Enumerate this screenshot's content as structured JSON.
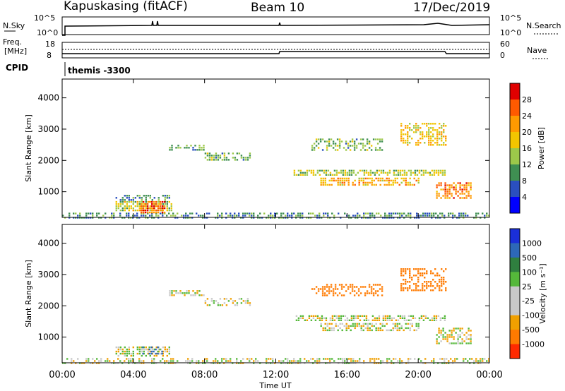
{
  "header": {
    "station": "Kapuskasing (fitACF)",
    "beam": "Beam 10",
    "date": "17/Dec/2019"
  },
  "top_panels": {
    "nsky_label": "N.Sky",
    "noise_left_ticks": [
      "10^5",
      "10^0"
    ],
    "noise_right_ticks": [
      "10^5",
      "10^0"
    ],
    "nsearch_label": "N.Search",
    "freq_label_1": "Freq.",
    "freq_label_2": "[MHz]",
    "freq_ticks": [
      "18",
      "8"
    ],
    "nave_ticks": [
      "60",
      "0"
    ],
    "nave_label": "Nave",
    "cpid_label": "CPID",
    "cpid_value": "themis -3300"
  },
  "colors": {
    "power_scale": [
      "#0000ff",
      "#2a4fbf",
      "#3f8f52",
      "#9cc84a",
      "#f2c500",
      "#ff9a00",
      "#ff5a00",
      "#e00000"
    ],
    "velocity_scale": [
      "#1a2fd8",
      "#2d68b8",
      "#2f7f3f",
      "#55b83a",
      "#c8c8c8",
      "#c8c8c8",
      "#f0a000",
      "#ff7a00",
      "#ff2a00"
    ]
  },
  "chart_data": [
    {
      "type": "heatmap",
      "id": "power",
      "ylabel": "Slant Range [km]",
      "colorbar_label": "Power [dB]",
      "colorbar_ticks": [
        "28",
        "24",
        "20",
        "16",
        "12",
        "8",
        "4"
      ],
      "ylim": [
        180,
        4600
      ],
      "y_ticks": [
        "4000",
        "3000",
        "2000",
        "1000"
      ],
      "patches": [
        {
          "t0": 0.0,
          "t1": 24.0,
          "r0": 190,
          "r1": 330,
          "p": 9,
          "d": 0.55
        },
        {
          "t0": 3.0,
          "t1": 6.2,
          "r0": 420,
          "r1": 700,
          "p": 16,
          "d": 0.7
        },
        {
          "t0": 4.4,
          "t1": 5.8,
          "r0": 300,
          "r1": 700,
          "p": 26,
          "d": 0.8
        },
        {
          "t0": 3.0,
          "t1": 6.0,
          "r0": 700,
          "r1": 900,
          "p": 9,
          "d": 0.6
        },
        {
          "t0": 6.0,
          "t1": 8.0,
          "r0": 2350,
          "r1": 2500,
          "p": 11,
          "d": 0.55
        },
        {
          "t0": 8.0,
          "t1": 10.5,
          "r0": 2000,
          "r1": 2250,
          "p": 12,
          "d": 0.6
        },
        {
          "t0": 13.0,
          "t1": 21.5,
          "r0": 1500,
          "r1": 1700,
          "p": 15,
          "d": 0.7
        },
        {
          "t0": 14.5,
          "t1": 20.0,
          "r0": 1200,
          "r1": 1450,
          "p": 20,
          "d": 0.65
        },
        {
          "t0": 14.0,
          "t1": 18.0,
          "r0": 2300,
          "r1": 2700,
          "p": 12,
          "d": 0.5
        },
        {
          "t0": 19.0,
          "t1": 21.5,
          "r0": 2500,
          "r1": 3200,
          "p": 18,
          "d": 0.55
        },
        {
          "t0": 21.0,
          "t1": 23.0,
          "r0": 800,
          "r1": 1300,
          "p": 24,
          "d": 0.6
        }
      ]
    },
    {
      "type": "heatmap",
      "id": "velocity",
      "ylabel": "Slant Range [km]",
      "colorbar_label": "Velocity [m s⁻¹]",
      "colorbar_ticks": [
        "1000",
        "500",
        "100",
        "25",
        "-25",
        "-100",
        "-500",
        "-1000"
      ],
      "ylim": [
        180,
        4600
      ],
      "y_ticks": [
        "4000",
        "3000",
        "2000",
        "1000"
      ],
      "patches": [
        {
          "t0": 0.0,
          "t1": 24.0,
          "r0": 190,
          "r1": 330,
          "v": 0,
          "d": 0.5
        },
        {
          "t0": 3.0,
          "t1": 6.0,
          "r0": 420,
          "r1": 700,
          "v": 0,
          "d": 0.6
        },
        {
          "t0": 4.5,
          "t1": 5.6,
          "r0": 450,
          "r1": 700,
          "v": 150,
          "d": 0.35
        },
        {
          "t0": 6.0,
          "t1": 8.0,
          "r0": 2350,
          "r1": 2500,
          "v": 0,
          "d": 0.5
        },
        {
          "t0": 8.0,
          "t1": 10.5,
          "r0": 2000,
          "r1": 2250,
          "v": 0,
          "d": 0.5
        },
        {
          "t0": 13.0,
          "t1": 21.5,
          "r0": 1500,
          "r1": 1700,
          "v": 0,
          "d": 0.65
        },
        {
          "t0": 14.5,
          "t1": 20.0,
          "r0": 1200,
          "r1": 1450,
          "v": 0,
          "d": 0.6
        },
        {
          "t0": 14.0,
          "t1": 18.0,
          "r0": 2300,
          "r1": 2700,
          "v": -200,
          "d": 0.4
        },
        {
          "t0": 19.0,
          "t1": 21.5,
          "r0": 2500,
          "r1": 3200,
          "v": -300,
          "d": 0.5
        },
        {
          "t0": 21.0,
          "t1": 23.0,
          "r0": 800,
          "r1": 1300,
          "v": 0,
          "d": 0.5
        }
      ]
    }
  ],
  "x_axis": {
    "label": "Time UT",
    "ticks": [
      "00:00",
      "04:00",
      "08:00",
      "12:00",
      "16:00",
      "20:00",
      "00:00"
    ],
    "xlim_hours": [
      0,
      24
    ]
  }
}
